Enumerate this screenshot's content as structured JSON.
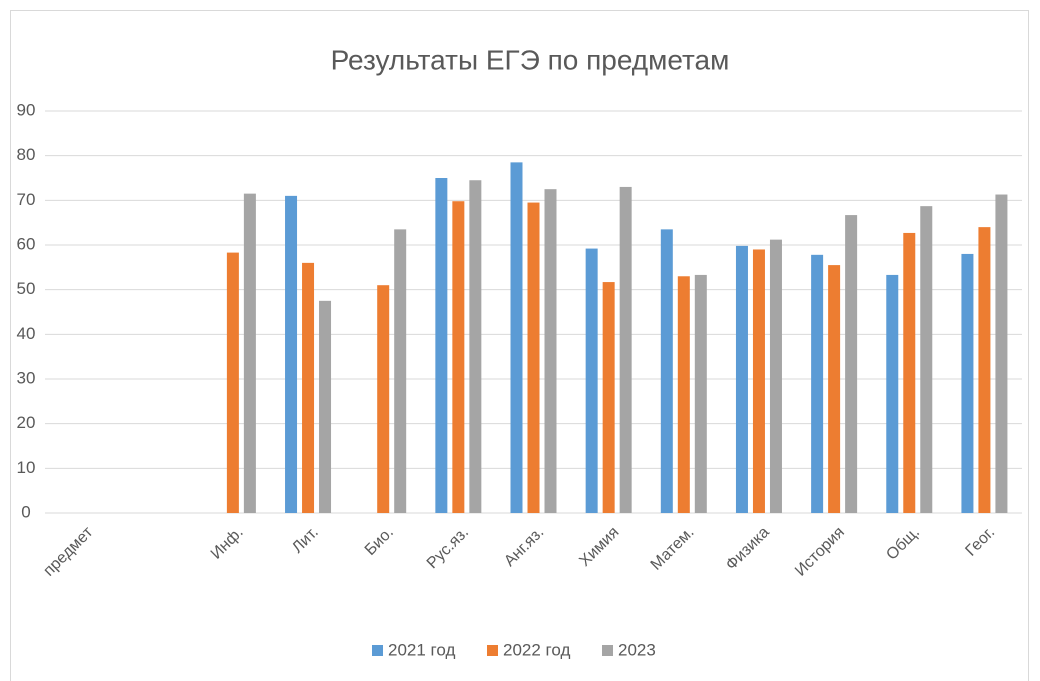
{
  "chart_data": {
    "type": "bar",
    "title": "Результаты ЕГЭ по предметам",
    "categories": [
      "предмет",
      null,
      "Инф.",
      "Лит.",
      "Био.",
      "Рус.яз.",
      "Анг.яз.",
      "Химия",
      "Матем.",
      "Физика",
      "История",
      "Общ.",
      "Геог."
    ],
    "series": [
      {
        "name": "2021 год",
        "color": "#5b9bd5",
        "values": [
          null,
          null,
          null,
          71,
          null,
          75,
          78.5,
          59.2,
          63.5,
          59.8,
          57.8,
          53.3,
          58
        ]
      },
      {
        "name": "2022 год",
        "color": "#ed7d31",
        "values": [
          null,
          null,
          58.3,
          56,
          51,
          69.8,
          69.5,
          51.7,
          53,
          59,
          55.5,
          62.7,
          64
        ]
      },
      {
        "name": "2023",
        "color": "#a5a5a5",
        "values": [
          null,
          null,
          71.5,
          47.5,
          63.5,
          74.5,
          72.5,
          73,
          53.3,
          61.2,
          66.7,
          68.7,
          71.3
        ]
      }
    ],
    "ylim": [
      0,
      90
    ],
    "yticks": [
      0,
      10,
      20,
      30,
      40,
      50,
      60,
      70,
      80,
      90
    ],
    "grid": true,
    "legend": "bottom"
  }
}
